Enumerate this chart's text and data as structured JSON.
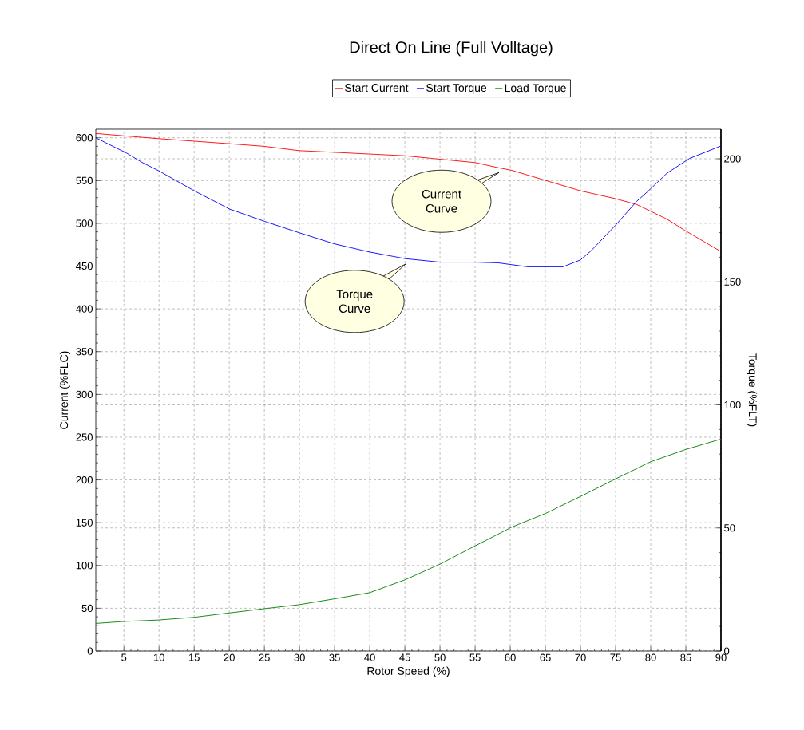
{
  "chart_data": {
    "type": "line",
    "title": "Direct On Line (Full Volltage)",
    "xlabel": "Rotor Speed (%)",
    "ylabel": "Current (%FLC)",
    "y2label": "Torque (%FLT)",
    "xlim": [
      1,
      90
    ],
    "xticks": [
      5,
      10,
      15,
      20,
      25,
      30,
      35,
      40,
      45,
      50,
      55,
      60,
      65,
      70,
      75,
      80,
      85,
      90
    ],
    "ylim": [
      0,
      610
    ],
    "yticks": [
      0,
      50,
      100,
      150,
      200,
      250,
      300,
      350,
      400,
      450,
      500,
      550,
      600
    ],
    "y2lim": [
      0,
      212
    ],
    "y2ticks": [
      0,
      50,
      100,
      150,
      200
    ],
    "grid": true,
    "legend": "top",
    "series": [
      {
        "name": "Start Current",
        "color": "#ff0000",
        "x": [
          1,
          5.4,
          9.9,
          15,
          20.1,
          25,
          29.9,
          35,
          40,
          45,
          50,
          55,
          58.3,
          60.2,
          65.1,
          70,
          74.9,
          78,
          82.3,
          84.8,
          90
        ],
        "values": [
          605,
          602,
          599,
          596,
          593,
          590,
          585,
          583,
          581,
          579,
          575,
          571,
          565,
          562,
          550,
          538,
          529,
          522,
          505,
          492,
          467
        ]
      },
      {
        "name": "Start Torque",
        "color": "#0000ff",
        "axis": "y2",
        "x": [
          1,
          5.4,
          7.6,
          9.9,
          15,
          20.1,
          25,
          29.9,
          35,
          40,
          45.1,
          50,
          55,
          58.3,
          62.5,
          67.5,
          70,
          71.5,
          75,
          78,
          79.5,
          82.3,
          85.5,
          90
        ],
        "values": [
          208.5,
          202.3,
          198.5,
          195.2,
          187,
          179.5,
          174.6,
          170,
          165.4,
          162.1,
          159.4,
          158,
          158,
          157.7,
          156.1,
          156.1,
          158.9,
          162.6,
          173,
          182.7,
          186.5,
          194.1,
          200.1,
          205.2
        ]
      },
      {
        "name": "Load Torque",
        "color": "#008000",
        "axis": "y2",
        "x": [
          1,
          5,
          9.9,
          15,
          20.1,
          25,
          29.9,
          35,
          40,
          45,
          50,
          55,
          60.2,
          65.1,
          70,
          74.9,
          80,
          84.9,
          90
        ],
        "values": [
          11.2,
          12.0,
          12.6,
          13.7,
          15.5,
          17.2,
          18.8,
          21.2,
          23.7,
          28.9,
          35.3,
          42.7,
          50.3,
          56.0,
          62.8,
          69.8,
          76.9,
          81.8,
          86.1
        ]
      }
    ],
    "annotations": [
      "Current Curve",
      "Torque Curve"
    ]
  }
}
